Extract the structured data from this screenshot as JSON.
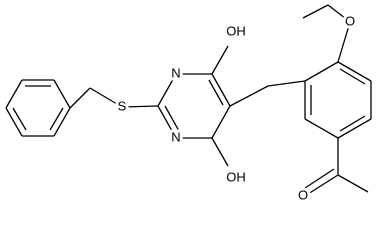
{
  "atoms": [
    {
      "label": "OH"
    },
    {
      "label": "N"
    },
    {
      "label": "N"
    },
    {
      "label": "OH"
    },
    {
      "label": "S"
    },
    {
      "label": "O"
    },
    {
      "label": "O"
    }
  ]
}
